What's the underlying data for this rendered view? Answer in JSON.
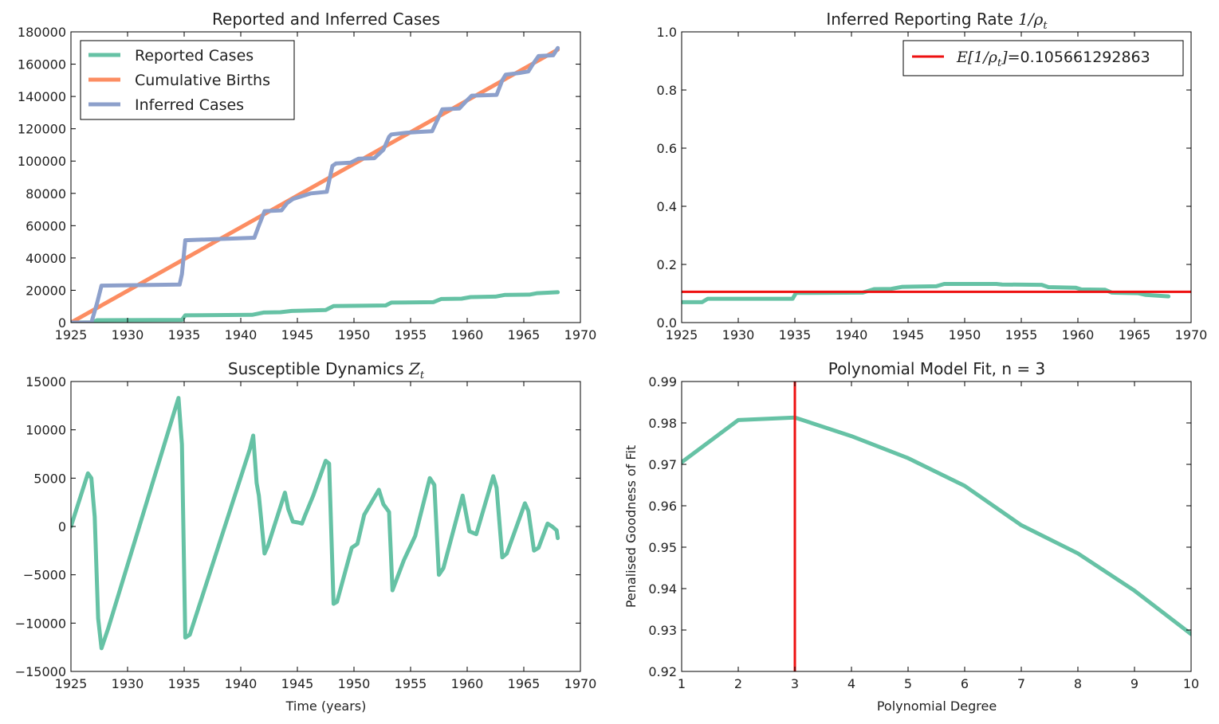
{
  "colors": {
    "reported": "#66c2a5",
    "births": "#fc8d62",
    "inferred": "#8da0cb",
    "accent": "#ee1111",
    "frame": "#000000"
  },
  "chart_data": [
    {
      "type": "line",
      "title": "Reported and Inferred Cases",
      "xlabel": "",
      "ylabel": "",
      "xlim": [
        1925,
        1970
      ],
      "ylim": [
        0,
        180000
      ],
      "xticks": [
        "1925",
        "1930",
        "1935",
        "1940",
        "1945",
        "1950",
        "1955",
        "1960",
        "1965",
        "1970"
      ],
      "yticks": [
        "0",
        "20000",
        "40000",
        "60000",
        "80000",
        "100000",
        "120000",
        "140000",
        "160000",
        "180000"
      ],
      "legend_position": "upper-left",
      "series": [
        {
          "name": "Reported Cases",
          "color": "#66c2a5",
          "x": [
            1925,
            1926.9,
            1927.3,
            1934.8,
            1935.1,
            1941,
            1942,
            1943.5,
            1944.5,
            1947.5,
            1948.2,
            1952.8,
            1953.3,
            1957,
            1957.7,
            1959.5,
            1960.3,
            1962.5,
            1963.3,
            1965.5,
            1966.2,
            1968
          ],
          "y": [
            0,
            200,
            1500,
            1700,
            4500,
            4800,
            6200,
            6400,
            7200,
            7800,
            10200,
            10600,
            12400,
            12600,
            14600,
            14800,
            15800,
            16100,
            17100,
            17300,
            18200,
            18800
          ]
        },
        {
          "name": "Cumulative Births",
          "color": "#fc8d62",
          "x": [
            1925,
            1968
          ],
          "y": [
            0,
            169000
          ]
        },
        {
          "name": "Inferred Cases",
          "color": "#8da0cb",
          "x": [
            1925,
            1926.8,
            1927.3,
            1927.7,
            1934.6,
            1934.8,
            1935.1,
            1941.2,
            1941.6,
            1942.1,
            1943.6,
            1944.1,
            1944.6,
            1946.2,
            1947.6,
            1948.1,
            1948.4,
            1949.7,
            1950.4,
            1951.8,
            1952.6,
            1953.1,
            1953.3,
            1954.6,
            1955.6,
            1956.9,
            1957.5,
            1957.8,
            1959.3,
            1959.9,
            1960.4,
            1962.6,
            1963.1,
            1963.4,
            1964.6,
            1965.4,
            1965.8,
            1966.3,
            1967.6,
            1968
          ],
          "y": [
            0,
            0,
            12000,
            22900,
            23500,
            30000,
            51000,
            52500,
            60000,
            69000,
            69500,
            74000,
            76500,
            80000,
            81000,
            97000,
            98500,
            99000,
            101500,
            101800,
            107000,
            115000,
            116500,
            117500,
            118000,
            118500,
            127500,
            132000,
            132500,
            137000,
            140500,
            141000,
            150000,
            153500,
            154500,
            155500,
            160000,
            165000,
            165500,
            170000
          ]
        }
      ]
    },
    {
      "type": "line",
      "title": "Inferred Reporting Rate",
      "title_math": "1/ρ",
      "title_math_sub": "t",
      "xlabel": "",
      "ylabel": "",
      "xlim": [
        1925,
        1970
      ],
      "ylim": [
        0.0,
        1.0
      ],
      "xticks": [
        "1925",
        "1930",
        "1935",
        "1940",
        "1945",
        "1950",
        "1955",
        "1960",
        "1965",
        "1970"
      ],
      "yticks": [
        "0.0",
        "0.2",
        "0.4",
        "0.6",
        "0.8",
        "1.0"
      ],
      "legend_position": "upper-right",
      "hline": {
        "y": 0.105661292863,
        "color": "#ee1111"
      },
      "legend": {
        "math_a": "E[1/ρ",
        "math_sub": "t",
        "math_b": "]=",
        "value": "0.105661292863"
      },
      "series": [
        {
          "name": "",
          "color": "#66c2a5",
          "x": [
            1925,
            1926.8,
            1927.3,
            1934.8,
            1935.1,
            1941,
            1942,
            1943.5,
            1944.5,
            1947.5,
            1948.2,
            1952.8,
            1953.3,
            1956.8,
            1957.4,
            1959.8,
            1960.3,
            1962.4,
            1963,
            1965.3,
            1966,
            1968
          ],
          "y": [
            0.07,
            0.07,
            0.082,
            0.082,
            0.102,
            0.103,
            0.115,
            0.116,
            0.123,
            0.125,
            0.133,
            0.133,
            0.131,
            0.13,
            0.122,
            0.12,
            0.114,
            0.113,
            0.103,
            0.101,
            0.095,
            0.09
          ]
        }
      ]
    },
    {
      "type": "line",
      "title": "Susceptible Dynamics",
      "title_math": "Z",
      "title_math_sub": "t",
      "xlabel": "Time (years)",
      "ylabel": "",
      "xlim": [
        1925,
        1970
      ],
      "ylim": [
        -15000,
        15000
      ],
      "xticks": [
        "1925",
        "1930",
        "1935",
        "1940",
        "1945",
        "1950",
        "1955",
        "1960",
        "1965",
        "1970"
      ],
      "yticks": [
        "−15000",
        "−10000",
        "−5000",
        "0",
        "5000",
        "10000",
        "15000"
      ],
      "series": [
        {
          "name": "",
          "color": "#66c2a5",
          "x": [
            1925,
            1926.5,
            1926.8,
            1927.1,
            1927.4,
            1927.7,
            1928.3,
            1934.5,
            1934.8,
            1935.1,
            1935.5,
            1940.8,
            1941.1,
            1941.4,
            1941.6,
            1942.1,
            1942.4,
            1943.9,
            1944.2,
            1944.6,
            1945.1,
            1945.4,
            1945.7,
            1946.4,
            1947.5,
            1947.8,
            1948.2,
            1948.5,
            1949.8,
            1950.3,
            1950.9,
            1952.2,
            1952.6,
            1953.1,
            1953.4,
            1954.4,
            1955.4,
            1956.7,
            1957.1,
            1957.5,
            1957.9,
            1959.6,
            1960.2,
            1960.8,
            1962.3,
            1962.6,
            1963.1,
            1963.5,
            1965.1,
            1965.4,
            1965.9,
            1966.3,
            1967.1,
            1967.5,
            1967.9,
            1968
          ],
          "y": [
            0,
            5500,
            5000,
            1000,
            -9500,
            -12600,
            -10500,
            13300,
            8500,
            -11500,
            -11200,
            8000,
            9400,
            4500,
            3200,
            -2800,
            -2000,
            3500,
            1800,
            500,
            400,
            300,
            1200,
            3200,
            6800,
            6500,
            -8000,
            -7800,
            -2200,
            -1800,
            1200,
            3800,
            2300,
            1500,
            -6600,
            -3500,
            -1000,
            5000,
            4300,
            -5000,
            -4300,
            3200,
            -500,
            -800,
            5200,
            4000,
            -3200,
            -2800,
            2400,
            1600,
            -2500,
            -2200,
            300,
            0,
            -400,
            -1200
          ]
        }
      ]
    },
    {
      "type": "line",
      "title": "Polynomial Model Fit, n = 3",
      "xlabel": "Polynomial Degree",
      "ylabel": "Penalised Goodness of Fit",
      "xlim": [
        1,
        10
      ],
      "ylim": [
        0.92,
        0.99
      ],
      "xticks": [
        "1",
        "2",
        "3",
        "4",
        "5",
        "6",
        "7",
        "8",
        "9",
        "10"
      ],
      "yticks": [
        "0.92",
        "0.93",
        "0.94",
        "0.95",
        "0.96",
        "0.97",
        "0.98",
        "0.99"
      ],
      "vline": {
        "x": 3,
        "color": "#ee1111"
      },
      "series": [
        {
          "name": "",
          "color": "#66c2a5",
          "x": [
            1,
            2,
            3,
            4,
            5,
            6,
            7,
            8,
            9,
            10
          ],
          "y": [
            0.9705,
            0.9807,
            0.9813,
            0.9768,
            0.9715,
            0.9648,
            0.9553,
            0.9485,
            0.9395,
            0.929
          ]
        }
      ]
    }
  ]
}
